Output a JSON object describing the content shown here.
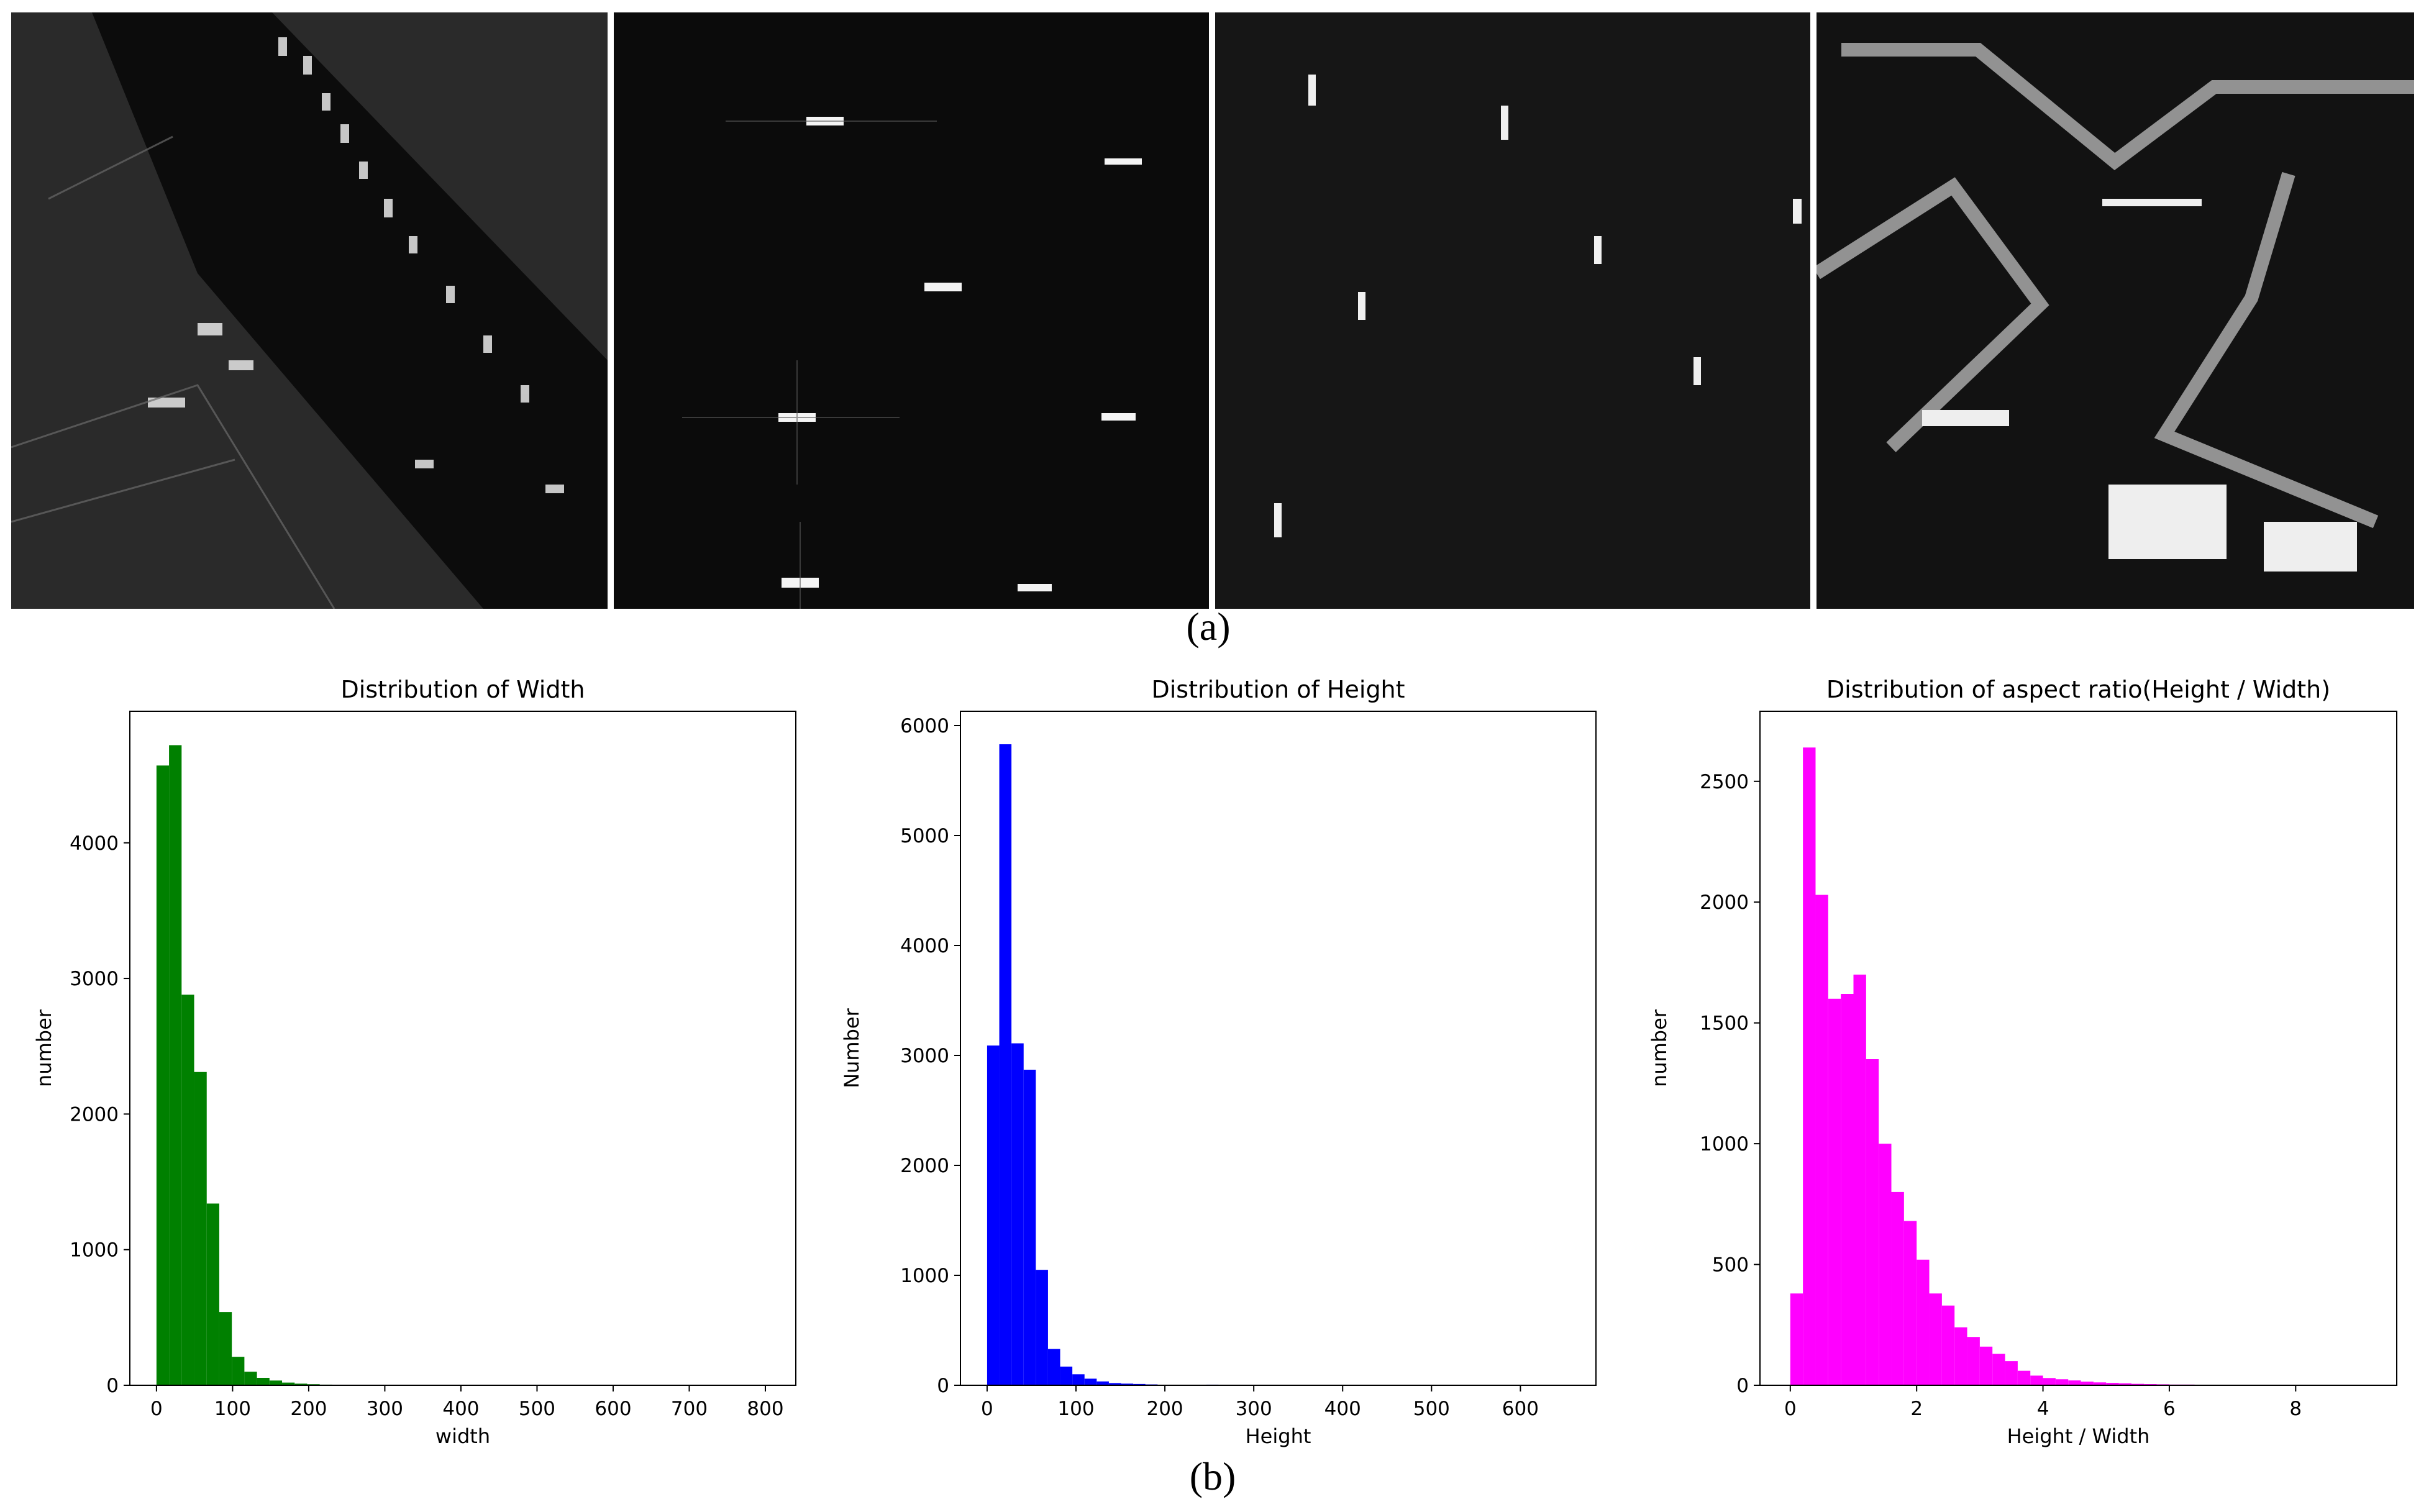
{
  "panel_a": {
    "caption": "(a)",
    "images": [
      {
        "name": "urban-river-port",
        "description_icon": "sar-image-river-city"
      },
      {
        "name": "open-sea-ships-bright",
        "description_icon": "sar-image-sea-ships"
      },
      {
        "name": "open-sea-ships-small",
        "description_icon": "sar-image-sea-ships"
      },
      {
        "name": "harbor-docks",
        "description_icon": "sar-image-harbor"
      }
    ]
  },
  "panel_b": {
    "caption": "(b)"
  },
  "chart_data": [
    {
      "type": "bar",
      "title": "Distribution of Width",
      "xlabel": "width",
      "ylabel": "number",
      "color": "#008000",
      "xlim": [
        -35,
        840
      ],
      "ylim": [
        0,
        4970
      ],
      "xticks": [
        0,
        100,
        200,
        300,
        400,
        500,
        600,
        700,
        800
      ],
      "yticks": [
        0,
        1000,
        2000,
        3000,
        4000
      ],
      "bin_width": 16.5,
      "bin_start": 0,
      "values": [
        4570,
        4720,
        2880,
        2310,
        1340,
        540,
        210,
        100,
        55,
        35,
        20,
        12,
        8,
        5,
        4,
        2,
        2,
        1
      ]
    },
    {
      "type": "bar",
      "title": "Distribution of Height",
      "xlabel": "Height",
      "ylabel": "Number",
      "color": "#0000ff",
      "xlim": [
        -30,
        685
      ],
      "ylim": [
        0,
        6130
      ],
      "xticks": [
        0,
        100,
        200,
        300,
        400,
        500,
        600
      ],
      "yticks": [
        0,
        1000,
        2000,
        3000,
        4000,
        5000,
        6000
      ],
      "bin_width": 13.7,
      "bin_start": 0,
      "values": [
        3090,
        5830,
        3110,
        2870,
        1050,
        330,
        170,
        100,
        60,
        35,
        20,
        15,
        12,
        8,
        5,
        3,
        2,
        1,
        6,
        2
      ]
    },
    {
      "type": "bar",
      "title": "Distribution of aspect ratio(Height / Width)",
      "xlabel": "Height / Width",
      "ylabel": "number",
      "color": "#ff00ff",
      "xlim": [
        -0.48,
        9.6
      ],
      "ylim": [
        0,
        2790
      ],
      "xticks": [
        0,
        2,
        4,
        6,
        8
      ],
      "yticks": [
        0,
        500,
        1000,
        1500,
        2000,
        2500
      ],
      "bin_width": 0.2,
      "bin_start": 0,
      "values": [
        380,
        2640,
        2030,
        1600,
        1620,
        1700,
        1350,
        1000,
        800,
        680,
        520,
        380,
        330,
        240,
        200,
        160,
        130,
        100,
        60,
        40,
        30,
        25,
        20,
        15,
        12,
        10,
        8,
        6,
        5,
        4,
        3,
        3,
        2,
        2,
        2,
        1,
        1,
        1
      ]
    }
  ]
}
